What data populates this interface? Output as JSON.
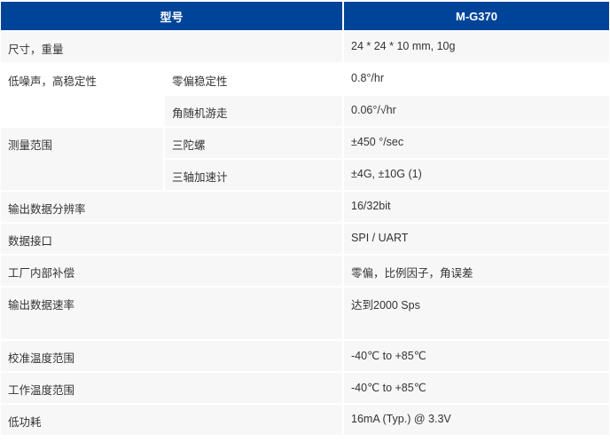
{
  "colors": {
    "header_bg": "#00449a",
    "row_bg": "#f7f7f7"
  },
  "header": {
    "col1": "型号",
    "col2": "M-G370"
  },
  "rows": {
    "size": {
      "label": "尺寸，重量",
      "value": "24 * 24 * 10 mm, 10g"
    },
    "noise": {
      "label": "低噪声，高稳定性",
      "bias_label": "零偏稳定性",
      "bias_value": "0.8°/hr",
      "arw_label": "角随机游走",
      "arw_value": "0.06°/√hr"
    },
    "range": {
      "label": "测量范围",
      "gyro_label": "三陀螺",
      "gyro_value": "±450 °/sec",
      "accel_label": "三轴加速计",
      "accel_value": "±4G, ±10G (1)"
    },
    "resolution": {
      "label": "输出数据分辨率",
      "value": "16/32bit"
    },
    "interface": {
      "label": "数据接口",
      "value": "SPI / UART"
    },
    "compensation": {
      "label": "工厂内部补偿",
      "value": "零偏，比例因子，角误差"
    },
    "rate": {
      "label": "输出数据速率",
      "value": "达到2000 Sps"
    },
    "cal_temp": {
      "label": "校准温度范围",
      "value": "-40℃ to +85℃"
    },
    "op_temp": {
      "label": "工作温度范围",
      "value": "-40℃ to +85℃"
    },
    "power": {
      "label": "低功耗",
      "value": "16mA (Typ.) @ 3.3V"
    }
  }
}
